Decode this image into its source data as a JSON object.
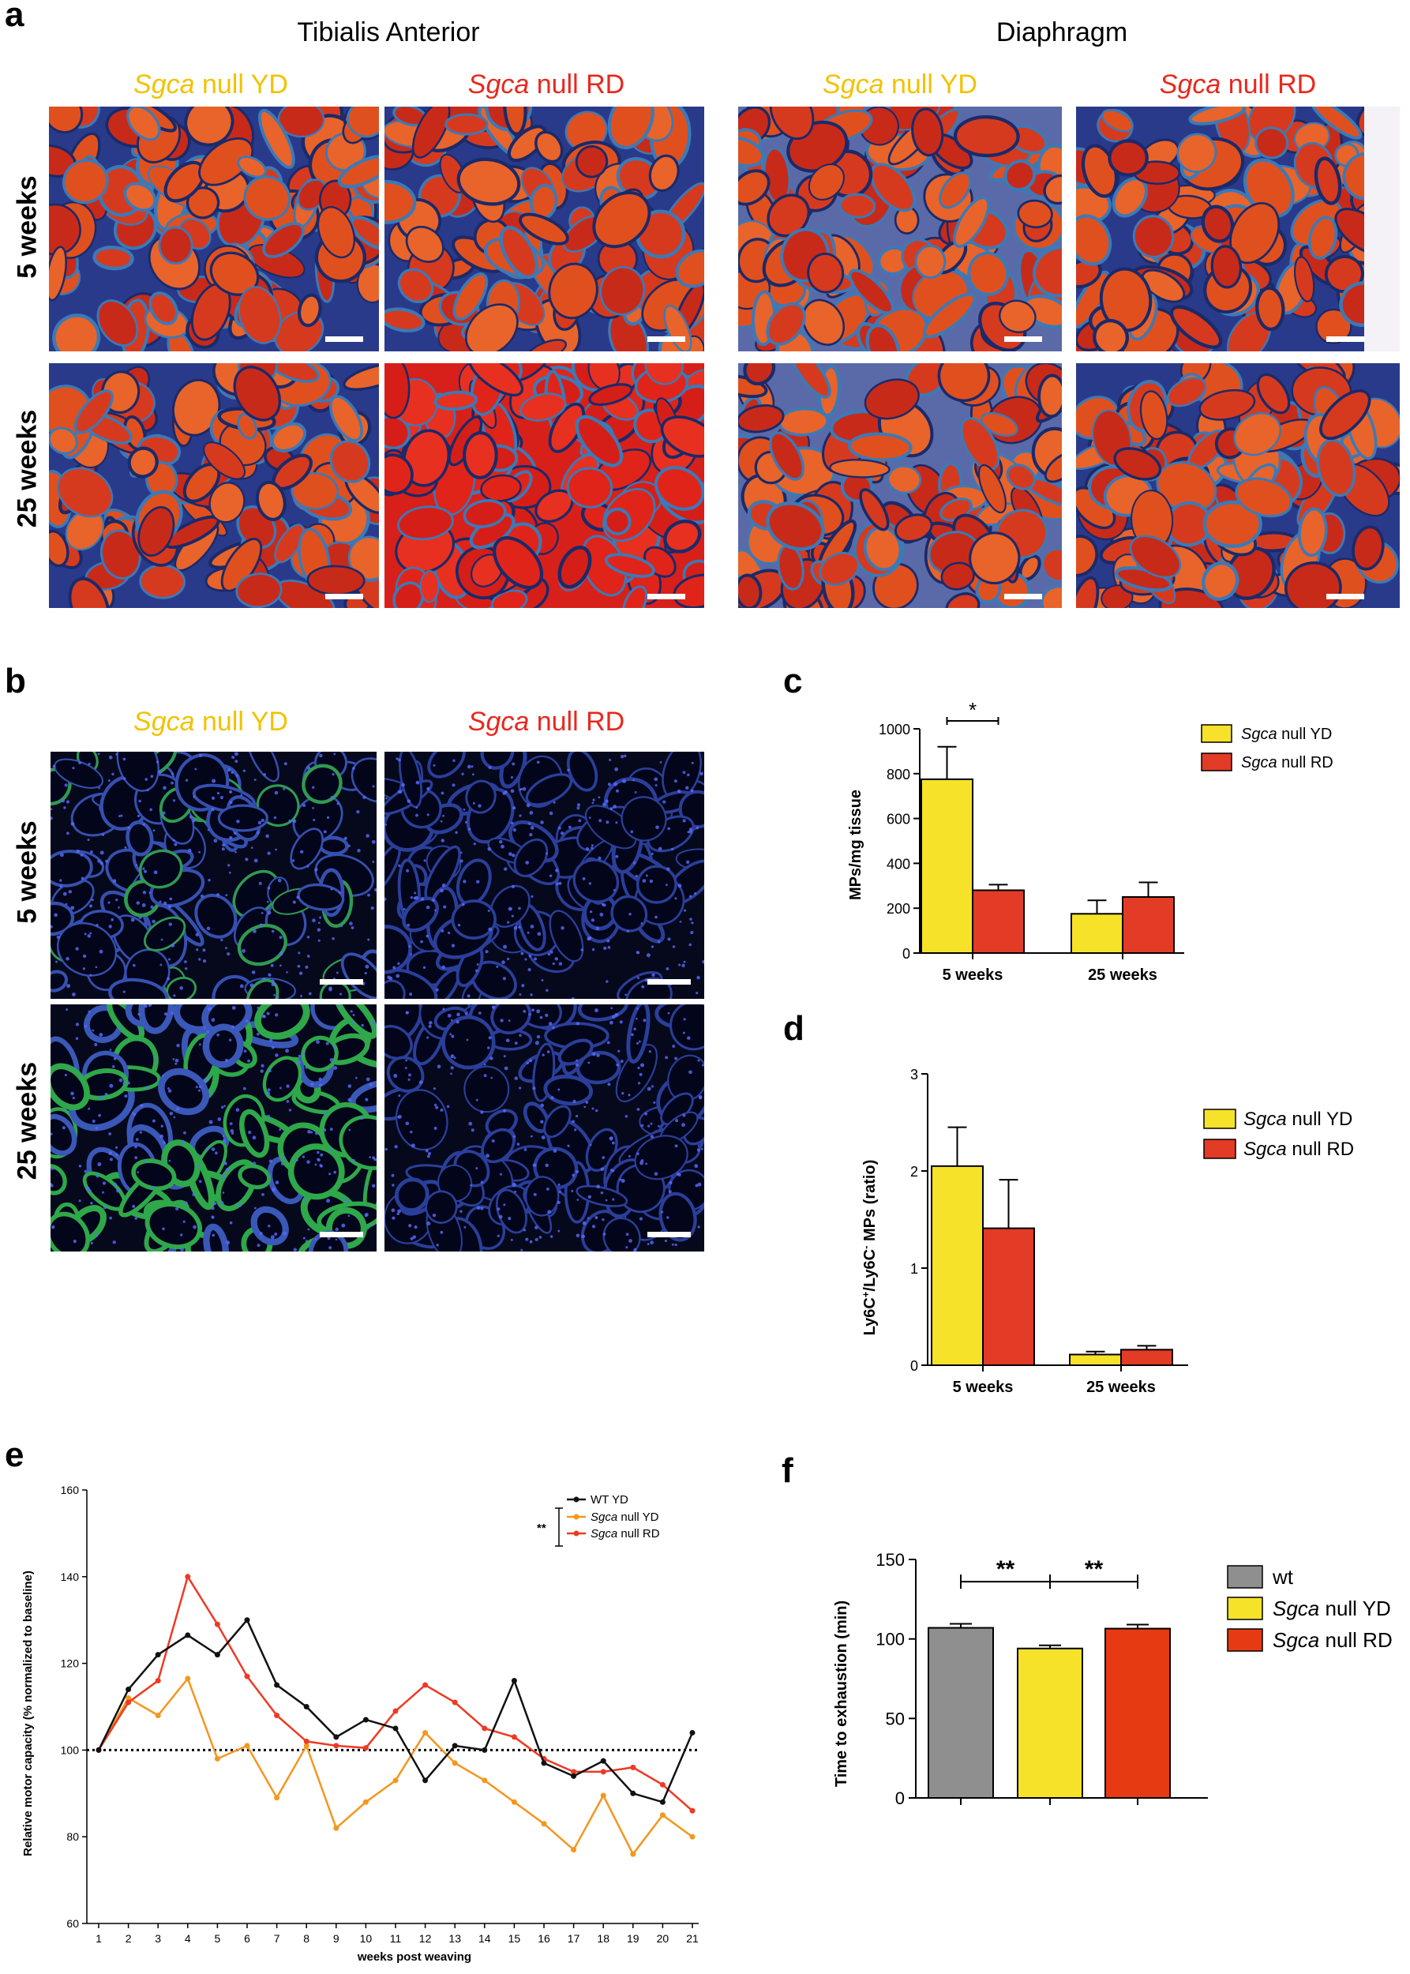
{
  "panel_letters": {
    "a": "a",
    "b": "b",
    "c": "c",
    "d": "d",
    "e": "e",
    "f": "f"
  },
  "panel_a": {
    "muscle_ta": "Tibialis Anterior",
    "muscle_dia": "Diaphragm",
    "label_gene": "Sgca",
    "label_yd_rest": " null YD",
    "label_rd_rest": " null RD",
    "row_5": "5 weeks",
    "row_25": "25 weeks"
  },
  "panel_b": {
    "label_gene": "Sgca",
    "label_yd_rest": " null YD",
    "label_rd_rest": " null RD",
    "row_5": "5 weeks",
    "row_25": "25 weeks"
  },
  "colors": {
    "yd": "#f7e22a",
    "rd": "#e23b26",
    "wt": "#8f8f8f",
    "wt_line": "#111111",
    "yd_line": "#f5961e",
    "rd_line": "#ee3a24",
    "yd_text": "#f2c200",
    "rd_text": "#e8281e",
    "rd_f": "#e63a12"
  },
  "chart_data": [
    {
      "panel": "c",
      "type": "bar",
      "categories": [
        "5 weeks",
        "25 weeks"
      ],
      "ylabel": "MPs/mg tissue",
      "ylim": [
        0,
        1000
      ],
      "yticks": [
        0,
        200,
        400,
        600,
        800,
        1000
      ],
      "series": [
        {
          "name_gene": "Sgca",
          "name_rest": " null YD",
          "values": [
            775,
            175
          ],
          "errors": [
            145,
            60
          ]
        },
        {
          "name_gene": "Sgca",
          "name_rest": " null RD",
          "values": [
            280,
            250
          ],
          "errors": [
            25,
            65
          ]
        }
      ],
      "significance": [
        {
          "label": "*"
        }
      ],
      "legend": "top-right"
    },
    {
      "panel": "d",
      "type": "bar",
      "categories": [
        "5 weeks",
        "25 weeks"
      ],
      "ylabel_html": "Ly6C+/Ly6C- MPs (ratio)",
      "ylim": [
        0,
        3
      ],
      "yticks": [
        0,
        1,
        2,
        3
      ],
      "series": [
        {
          "name_gene": "Sgca",
          "name_rest": " null YD",
          "values": [
            2.05,
            0.11
          ],
          "errors": [
            0.4,
            0.03
          ]
        },
        {
          "name_gene": "Sgca",
          "name_rest": " null RD",
          "values": [
            1.41,
            0.16
          ],
          "errors": [
            0.5,
            0.04
          ]
        }
      ],
      "legend": "right"
    },
    {
      "panel": "e",
      "type": "line",
      "xlabel": "weeks post weaving",
      "ylabel": "Relative motor capacity (% normalized to baseline)",
      "ylim": [
        60,
        160
      ],
      "yticks": [
        60,
        80,
        100,
        120,
        140,
        160
      ],
      "x": [
        1,
        2,
        3,
        4,
        5,
        6,
        7,
        8,
        9,
        10,
        11,
        12,
        13,
        14,
        15,
        16,
        17,
        18,
        19,
        20,
        21
      ],
      "reference_line": 100,
      "series": [
        {
          "name": "WT YD",
          "values": [
            100,
            114,
            122,
            126.5,
            122,
            130,
            115,
            110,
            103,
            107,
            105,
            93,
            101,
            100,
            116,
            97,
            94,
            97.5,
            90,
            88,
            104
          ]
        },
        {
          "name_gene": "Sgca",
          "name_rest": " null YD",
          "values": [
            100,
            112,
            108,
            116.5,
            98,
            101,
            89,
            101,
            82,
            88,
            93,
            104,
            97,
            93,
            88,
            83,
            77,
            89.5,
            76,
            85,
            80
          ]
        },
        {
          "name_gene": "Sgca",
          "name_rest": " null RD",
          "values": [
            100,
            111,
            116,
            140,
            129,
            117,
            108,
            102,
            101,
            100.5,
            109,
            115,
            111,
            105,
            103,
            98,
            95,
            95,
            96,
            92,
            86
          ]
        }
      ],
      "significance": [
        {
          "label": "**"
        }
      ],
      "legend": "top-right"
    },
    {
      "panel": "f",
      "type": "bar",
      "categories": [
        "wt",
        "Sgca null YD",
        "Sgca null RD"
      ],
      "ylabel": "Time to exhaustion (min)",
      "ylim": [
        0,
        150
      ],
      "yticks": [
        0,
        50,
        100,
        150
      ],
      "values": [
        107,
        94,
        106.5
      ],
      "errors": [
        2.5,
        2,
        2.5
      ],
      "legend_labels": [
        {
          "gene": "",
          "rest": "wt"
        },
        {
          "gene": "Sgca",
          "rest": " null YD"
        },
        {
          "gene": "Sgca",
          "rest": " null RD"
        }
      ],
      "significance": [
        {
          "label": "**"
        },
        {
          "label": "**"
        }
      ],
      "legend": "right"
    }
  ]
}
